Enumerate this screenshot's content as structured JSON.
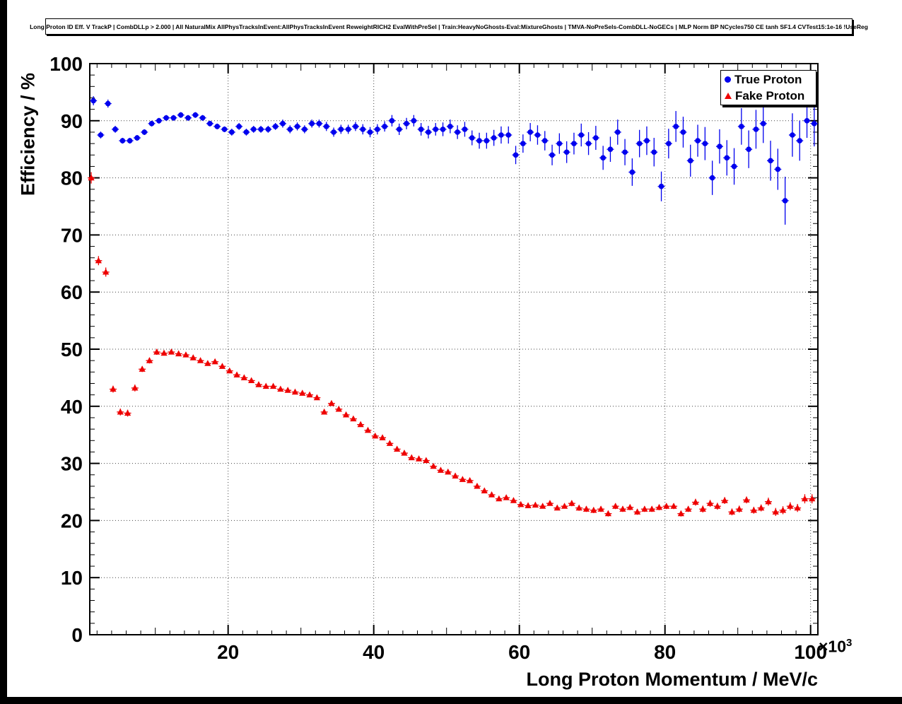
{
  "window": {
    "background": "#ffffff",
    "frame_color": "#000000"
  },
  "chart_data": {
    "type": "scatter",
    "title": "Long Proton ID Eff. V TrackP | CombDLLp > 2.000 | All NaturalMix AllPhysTracksInEvent:AllPhysTracksInEvent ReweightRICH2 EvalWithPreSel | Train:HeavyNoGhosts-Eval:MixtureGhosts | TMVA-NoPreSels-CombDLL-NoGECs | MLP Norm BP NCycles750 CE tanh SF1.4 CVTest15:1e-16 !UseReg",
    "xlabel": "Long Proton Momentum / MeV/c",
    "ylabel": "Efficiency / %",
    "xlim": [
      1000,
      101000
    ],
    "ylim": [
      0,
      100
    ],
    "x_ticks": [
      20000,
      40000,
      60000,
      80000,
      100000
    ],
    "x_tick_labels": [
      "20",
      "40",
      "60",
      "80",
      "100"
    ],
    "x_minor_step": 2000,
    "y_ticks": [
      0,
      10,
      20,
      30,
      40,
      50,
      60,
      70,
      80,
      90,
      100
    ],
    "y_minor_step": 2,
    "x_multiplier": {
      "base": "×10",
      "exp": "3"
    },
    "grid": {
      "style": "dotted",
      "color": "#444444"
    },
    "legend_position": "top-right",
    "series": [
      {
        "name": "True Proton",
        "marker": "circle",
        "color": "#0000ee",
        "x_start": 1500,
        "x_step": 1000,
        "y": [
          93.5,
          87.5,
          93.0,
          88.5,
          86.5,
          86.5,
          87.0,
          88.0,
          89.5,
          90.0,
          90.5,
          90.5,
          91.0,
          90.5,
          91.0,
          90.5,
          89.5,
          89.0,
          88.5,
          88.0,
          89.0,
          88.0,
          88.5,
          88.5,
          88.5,
          89.0,
          89.5,
          88.5,
          89.0,
          88.5,
          89.5,
          89.5,
          89.0,
          88.0,
          88.5,
          88.5,
          89.0,
          88.5,
          88.0,
          88.5,
          89.0,
          90.0,
          88.5,
          89.5,
          90.0,
          88.5,
          88.0,
          88.5,
          88.5,
          89.0,
          88.0,
          88.5,
          87.0,
          86.5,
          86.5,
          87.0,
          87.5,
          87.5,
          84.0,
          86.0,
          88.0,
          87.5,
          86.5,
          84.0,
          86.0,
          84.5,
          86.0,
          87.5,
          86.0,
          87.0,
          83.5,
          85.0,
          88.0,
          84.5,
          81.0,
          86.0,
          86.5,
          84.5,
          78.5,
          86.0,
          89.0,
          88.0,
          83.0,
          86.5,
          86.0,
          80.0,
          85.5,
          83.5,
          82.0,
          89.0,
          85.0,
          88.5,
          89.5,
          83.0,
          81.5,
          76.0,
          87.5,
          86.5,
          90.0,
          89.5
        ],
        "yerr": [
          0.8,
          0.6,
          0.7,
          0.6,
          0.5,
          0.5,
          0.5,
          0.5,
          0.5,
          0.5,
          0.5,
          0.5,
          0.5,
          0.5,
          0.5,
          0.5,
          0.5,
          0.5,
          0.5,
          0.6,
          0.6,
          0.6,
          0.6,
          0.6,
          0.6,
          0.6,
          0.7,
          0.7,
          0.7,
          0.7,
          0.7,
          0.7,
          0.8,
          0.8,
          0.8,
          0.8,
          0.8,
          0.9,
          0.9,
          0.9,
          0.9,
          1.0,
          1.0,
          1.0,
          1.0,
          1.1,
          1.1,
          1.1,
          1.2,
          1.2,
          1.2,
          1.3,
          1.3,
          1.4,
          1.4,
          1.4,
          1.5,
          1.5,
          1.6,
          1.6,
          1.6,
          1.7,
          1.7,
          1.8,
          1.8,
          1.9,
          1.9,
          2.0,
          2.0,
          2.1,
          2.1,
          2.2,
          2.2,
          2.3,
          2.4,
          2.4,
          2.5,
          2.5,
          2.6,
          2.6,
          2.7,
          2.7,
          2.8,
          2.8,
          2.9,
          3.0,
          3.0,
          3.1,
          3.2,
          3.2,
          3.3,
          3.4,
          3.4,
          3.5,
          3.6,
          4.2,
          3.8,
          3.5,
          3.0,
          4.0
        ]
      },
      {
        "name": "Fake Proton",
        "marker": "triangle",
        "color": "#ee0000",
        "x_start": 1200,
        "x_step": 1000,
        "y": [
          80.0,
          65.5,
          63.5,
          43.0,
          39.0,
          38.8,
          43.2,
          46.5,
          48.0,
          49.5,
          49.3,
          49.5,
          49.2,
          49.0,
          48.5,
          48.0,
          47.5,
          47.8,
          47.0,
          46.2,
          45.5,
          45.0,
          44.5,
          43.8,
          43.5,
          43.5,
          43.0,
          42.8,
          42.5,
          42.3,
          42.0,
          41.5,
          39.0,
          40.5,
          39.5,
          38.5,
          37.8,
          36.8,
          35.8,
          34.8,
          34.5,
          33.5,
          32.5,
          31.8,
          31.0,
          30.8,
          30.5,
          29.5,
          28.8,
          28.5,
          27.8,
          27.2,
          27.0,
          26.0,
          25.2,
          24.5,
          23.8,
          24.0,
          23.5,
          22.8,
          22.6,
          22.7,
          22.5,
          23.0,
          22.2,
          22.5,
          23.0,
          22.2,
          22.0,
          21.8,
          22.0,
          21.2,
          22.5,
          22.0,
          22.3,
          21.5,
          22.0,
          22.0,
          22.3,
          22.5,
          22.5,
          21.2,
          22.0,
          23.2,
          22.0,
          23.0,
          22.5,
          23.5,
          21.5,
          22.0,
          23.6,
          21.8,
          22.2,
          23.3,
          21.5,
          21.8,
          22.5,
          22.2,
          23.8,
          23.8
        ],
        "yerr": [
          1.0,
          0.8,
          0.8,
          0.6,
          0.6,
          0.6,
          0.6,
          0.5,
          0.5,
          0.5,
          0.4,
          0.4,
          0.4,
          0.4,
          0.4,
          0.4,
          0.4,
          0.4,
          0.4,
          0.4,
          0.4,
          0.4,
          0.4,
          0.4,
          0.4,
          0.4,
          0.4,
          0.4,
          0.4,
          0.4,
          0.4,
          0.4,
          0.4,
          0.4,
          0.4,
          0.4,
          0.4,
          0.4,
          0.4,
          0.4,
          0.4,
          0.4,
          0.4,
          0.4,
          0.4,
          0.4,
          0.4,
          0.4,
          0.4,
          0.4,
          0.4,
          0.4,
          0.4,
          0.4,
          0.4,
          0.4,
          0.4,
          0.4,
          0.4,
          0.4,
          0.4,
          0.4,
          0.4,
          0.4,
          0.4,
          0.4,
          0.5,
          0.5,
          0.5,
          0.5,
          0.5,
          0.5,
          0.5,
          0.5,
          0.5,
          0.5,
          0.5,
          0.5,
          0.5,
          0.5,
          0.5,
          0.5,
          0.5,
          0.6,
          0.6,
          0.6,
          0.6,
          0.6,
          0.6,
          0.6,
          0.6,
          0.6,
          0.6,
          0.7,
          0.7,
          0.7,
          0.7,
          0.7,
          0.8,
          0.8
        ]
      }
    ]
  }
}
